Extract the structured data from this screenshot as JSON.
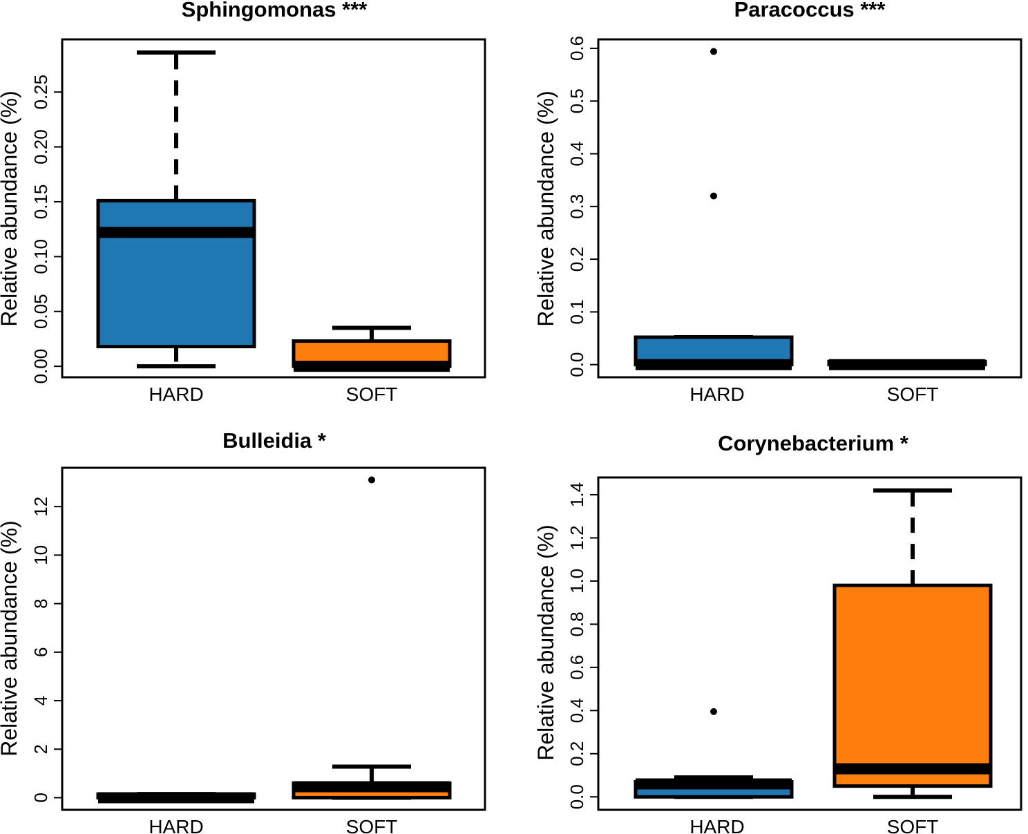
{
  "chart_data": [
    {
      "type": "boxplot",
      "title": "Sphingomonas ***",
      "ylabel": "Relative abundance (%)",
      "xlabel": "",
      "ylim": [
        -0.01,
        0.298
      ],
      "yticks": [
        0.0,
        0.05,
        0.1,
        0.15,
        0.2,
        0.25
      ],
      "ytick_labels": [
        "0.00",
        "0.05",
        "0.10",
        "0.15",
        "0.20",
        "0.25"
      ],
      "categories": [
        "HARD",
        "SOFT"
      ],
      "boxes": [
        {
          "group": "HARD",
          "color": "#1f77b4",
          "whisker_low": 0.0,
          "q1": 0.018,
          "median": 0.122,
          "q3": 0.151,
          "whisker_high": 0.286,
          "outliers": []
        },
        {
          "group": "SOFT",
          "color": "#ff7f0e",
          "whisker_low": 0.0,
          "q1": 0.0,
          "median": 0.0,
          "q3": 0.023,
          "whisker_high": 0.035,
          "outliers": []
        }
      ]
    },
    {
      "type": "boxplot",
      "title": "Paracoccus ***",
      "ylabel": "Relative abundance (%)",
      "xlabel": "",
      "ylim": [
        -0.024,
        0.617
      ],
      "yticks": [
        0.0,
        0.1,
        0.2,
        0.3,
        0.4,
        0.5,
        0.6
      ],
      "ytick_labels": [
        "0.0",
        "0.1",
        "0.2",
        "0.3",
        "0.4",
        "0.5",
        "0.6"
      ],
      "categories": [
        "HARD",
        "SOFT"
      ],
      "boxes": [
        {
          "group": "HARD",
          "color": "#1f77b4",
          "whisker_low": 0.0,
          "q1": 0.0,
          "median": 0.0,
          "q3": 0.052,
          "whisker_high": 0.052,
          "outliers": [
            0.32,
            0.594
          ]
        },
        {
          "group": "SOFT",
          "color": "#ff7f0e",
          "whisker_low": 0.0,
          "q1": 0.0,
          "median": 0.0,
          "q3": 0.006,
          "whisker_high": 0.006,
          "outliers": []
        }
      ]
    },
    {
      "type": "boxplot",
      "title": "Bulleidia *",
      "ylabel": "Relative abundance (%)",
      "xlabel": "",
      "ylim": [
        -0.5,
        13.6
      ],
      "yticks": [
        0,
        2,
        4,
        6,
        8,
        10,
        12
      ],
      "ytick_labels": [
        "0",
        "2",
        "4",
        "6",
        "8",
        "10",
        "12"
      ],
      "categories": [
        "HARD",
        "SOFT"
      ],
      "boxes": [
        {
          "group": "HARD",
          "color": "#1f77b4",
          "whisker_low": 0.0,
          "q1": 0.0,
          "median": 0.0,
          "q3": 0.15,
          "whisker_high": 0.15,
          "outliers": []
        },
        {
          "group": "SOFT",
          "color": "#ff7f0e",
          "whisker_low": 0.0,
          "q1": 0.0,
          "median": 0.45,
          "q3": 0.6,
          "whisker_high": 1.28,
          "outliers": [
            13.1
          ]
        }
      ]
    },
    {
      "type": "boxplot",
      "title": "Corynebacterium *",
      "ylabel": "Relative abundance (%)",
      "xlabel": "",
      "ylim": [
        -0.06,
        1.48
      ],
      "yticks": [
        0.0,
        0.2,
        0.4,
        0.6,
        0.8,
        1.0,
        1.2,
        1.4
      ],
      "ytick_labels": [
        "0.0",
        "0.2",
        "0.4",
        "0.6",
        "0.8",
        "1.0",
        "1.2",
        "1.4"
      ],
      "categories": [
        "HARD",
        "SOFT"
      ],
      "boxes": [
        {
          "group": "HARD",
          "color": "#1f77b4",
          "whisker_low": 0.0,
          "q1": 0.0,
          "median": 0.06,
          "q3": 0.07,
          "whisker_high": 0.09,
          "outliers": [
            0.395
          ]
        },
        {
          "group": "SOFT",
          "color": "#ff7f0e",
          "whisker_low": 0.0,
          "q1": 0.05,
          "median": 0.13,
          "q3": 0.98,
          "whisker_high": 1.42,
          "outliers": []
        }
      ]
    }
  ]
}
